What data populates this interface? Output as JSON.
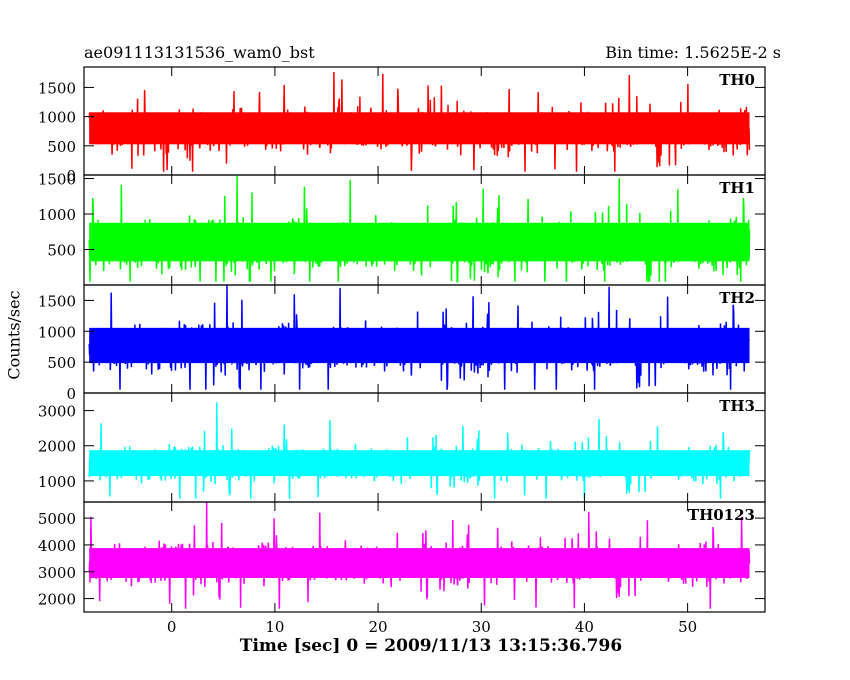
{
  "header": {
    "obs_id": "ae091113131536_wam0_bst",
    "bin_time": "Bin time: 1.5625E-2 s"
  },
  "chart_data": {
    "type": "line",
    "xlabel": "Time [sec] 0 = 2009/11/13 13:15:36.796",
    "ylabel": "Counts/sec",
    "xlim": [
      -8.5,
      57.5
    ],
    "x_ticks": [
      0,
      10,
      20,
      30,
      40,
      50
    ],
    "x_tick_labels": [
      "0",
      "10",
      "20",
      "30",
      "40",
      "50"
    ],
    "data_range": [
      -8,
      56
    ],
    "panels": [
      {
        "name": "TH0",
        "color": "#ff0000",
        "ylim": [
          0,
          1850
        ],
        "ticks": [
          0,
          500,
          1000,
          1500
        ],
        "tick_labels": [
          "0",
          "500",
          "1000",
          "1500"
        ],
        "mean": 760,
        "band_low": 320,
        "band_high": 1280
      },
      {
        "name": "TH1",
        "color": "#00ff00",
        "ylim": [
          0,
          1550
        ],
        "ticks": [
          500,
          1000,
          1500
        ],
        "tick_labels": [
          "500",
          "1000",
          "1500"
        ],
        "mean": 560,
        "band_low": 130,
        "band_high": 1080
      },
      {
        "name": "TH2",
        "color": "#0000ff",
        "ylim": [
          0,
          1750
        ],
        "ticks": [
          0,
          500,
          1000,
          1500
        ],
        "tick_labels": [
          "0",
          "500",
          "1000",
          "1500"
        ],
        "mean": 730,
        "band_low": 270,
        "band_high": 1270
      },
      {
        "name": "TH3",
        "color": "#00ffff",
        "ylim": [
          400,
          3500
        ],
        "ticks": [
          1000,
          2000,
          3000
        ],
        "tick_labels": [
          "1000",
          "2000",
          "3000"
        ],
        "mean": 1480,
        "band_low": 860,
        "band_high": 2150
      },
      {
        "name": "TH0123",
        "color": "#ff00ff",
        "ylim": [
          1500,
          5600
        ],
        "ticks": [
          2000,
          3000,
          4000,
          5000
        ],
        "tick_labels": [
          "2000",
          "3000",
          "4000",
          "5000"
        ],
        "mean": 3300,
        "band_low": 2350,
        "band_high": 4300
      }
    ]
  }
}
